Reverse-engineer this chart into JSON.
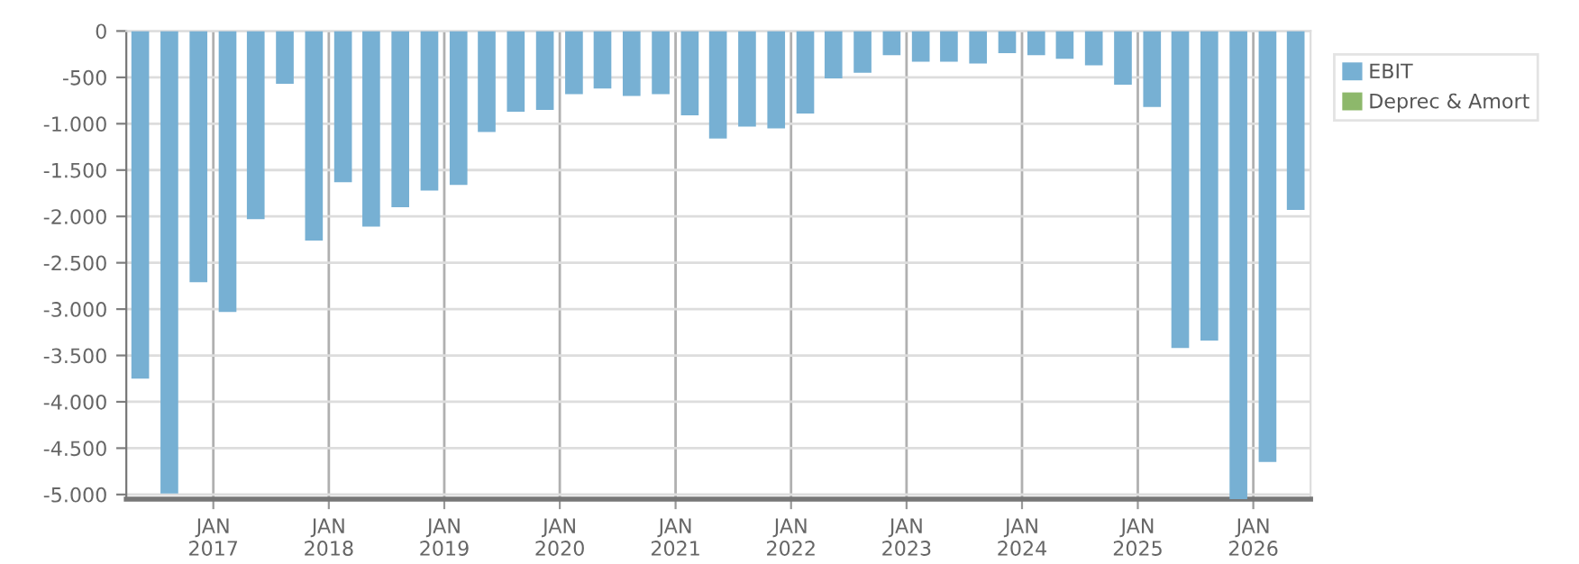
{
  "chart_data": {
    "type": "bar",
    "x": [
      "2016-05-15",
      "2016-08-15",
      "2016-11-15",
      "2017-02-15",
      "2017-05-15",
      "2017-08-15",
      "2017-11-15",
      "2018-02-15",
      "2018-05-15",
      "2018-08-15",
      "2018-11-15",
      "2019-02-15",
      "2019-05-15",
      "2019-08-15",
      "2019-11-15",
      "2020-02-15",
      "2020-05-15",
      "2020-08-15",
      "2020-11-15",
      "2021-02-15",
      "2021-05-15",
      "2021-08-15",
      "2021-11-15",
      "2022-02-15",
      "2022-05-15",
      "2022-08-15",
      "2022-11-15",
      "2023-02-15",
      "2023-05-15",
      "2023-08-15",
      "2023-11-15",
      "2024-02-15",
      "2024-05-15",
      "2024-08-15",
      "2024-11-15",
      "2025-02-15",
      "2025-05-15",
      "2025-08-15",
      "2025-11-15",
      "2026-02-15",
      "2026-05-15"
    ],
    "series": [
      {
        "name": "EBIT",
        "color": "#77b0d3",
        "values": [
          -3750,
          -4990,
          -2710,
          -3030,
          -2030,
          -570,
          -2260,
          -1630,
          -2110,
          -1900,
          -1720,
          -1660,
          -1090,
          -870,
          -850,
          -680,
          -620,
          -700,
          -680,
          -910,
          -1160,
          -1030,
          -1050,
          -890,
          -510,
          -450,
          -260,
          -330,
          -330,
          -350,
          -240,
          -260,
          -300,
          -370,
          -580,
          -820,
          -3420,
          -3340,
          -5050,
          -4650,
          -1930
        ]
      },
      {
        "name": "Deprec & Amort",
        "color": "#8db86b",
        "values": [
          null,
          null,
          null,
          null,
          null,
          null,
          null,
          null,
          null,
          null,
          null,
          null,
          null,
          null,
          null,
          null,
          null,
          null,
          null,
          null,
          null,
          null,
          null,
          null,
          null,
          null,
          null,
          null,
          null,
          null,
          null,
          null,
          null,
          null,
          null,
          null,
          null,
          null,
          null,
          null,
          null
        ]
      }
    ],
    "xlim": [
      "2016-04-01",
      "2026-07-01"
    ],
    "xticks": [
      {
        "value": "2017-01-01",
        "label": "JAN\n2017"
      },
      {
        "value": "2018-01-01",
        "label": "JAN\n2018"
      },
      {
        "value": "2019-01-01",
        "label": "JAN\n2019"
      },
      {
        "value": "2020-01-01",
        "label": "JAN\n2020"
      },
      {
        "value": "2021-01-01",
        "label": "JAN\n2021"
      },
      {
        "value": "2022-01-01",
        "label": "JAN\n2022"
      },
      {
        "value": "2023-01-01",
        "label": "JAN\n2023"
      },
      {
        "value": "2024-01-01",
        "label": "JAN\n2024"
      },
      {
        "value": "2025-01-01",
        "label": "JAN\n2025"
      },
      {
        "value": "2026-01-01",
        "label": "JAN\n2026"
      }
    ],
    "ylim": [
      -5050,
      0
    ],
    "yticks": [
      0,
      {
        "value": -500,
        "label": "-500"
      },
      {
        "value": -1000,
        "label": "-1.000"
      },
      {
        "value": -1500,
        "label": "-1.500"
      },
      {
        "value": -2000,
        "label": "-2.000"
      },
      {
        "value": -2500,
        "label": "-2.500"
      },
      {
        "value": -3000,
        "label": "-3.000"
      },
      {
        "value": -3500,
        "label": "-3.500"
      },
      {
        "value": -4000,
        "label": "-4.000"
      },
      {
        "value": -4500,
        "label": "-4.500"
      },
      {
        "value": -5000,
        "label": "-5.000"
      }
    ],
    "grid": true,
    "legend": "top right"
  }
}
